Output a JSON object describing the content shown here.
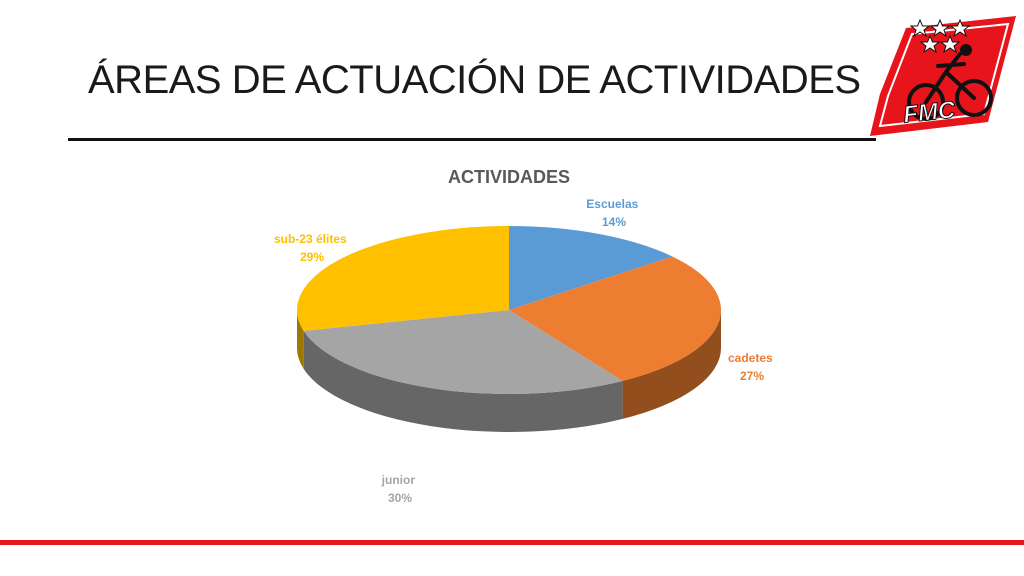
{
  "slide": {
    "title": "ÁREAS DE ACTUACIÓN DE ACTIVIDADES",
    "logo_text": "FMC"
  },
  "colors": {
    "title_rule": "#111111",
    "footer_rule": "#e8141c",
    "logo_red": "#e8141c"
  },
  "chart_data": {
    "type": "pie",
    "style": "3d",
    "title": "ACTIVIDADES",
    "slices": [
      {
        "label": "Escuelas",
        "value": 14,
        "display": "14%",
        "color": "#5b9bd5",
        "label_color": "#5b9bd5"
      },
      {
        "label": "cadetes",
        "value": 27,
        "display": "27%",
        "color": "#ed7d31",
        "label_color": "#ed7d31"
      },
      {
        "label": "junior",
        "value": 30,
        "display": "30%",
        "color": "#a5a5a5",
        "label_color": "#a5a5a5"
      },
      {
        "label": "sub-23 élites",
        "value": 29,
        "display": "29%",
        "color": "#ffc000",
        "label_color": "#ffc000"
      }
    ],
    "legend": "none"
  }
}
